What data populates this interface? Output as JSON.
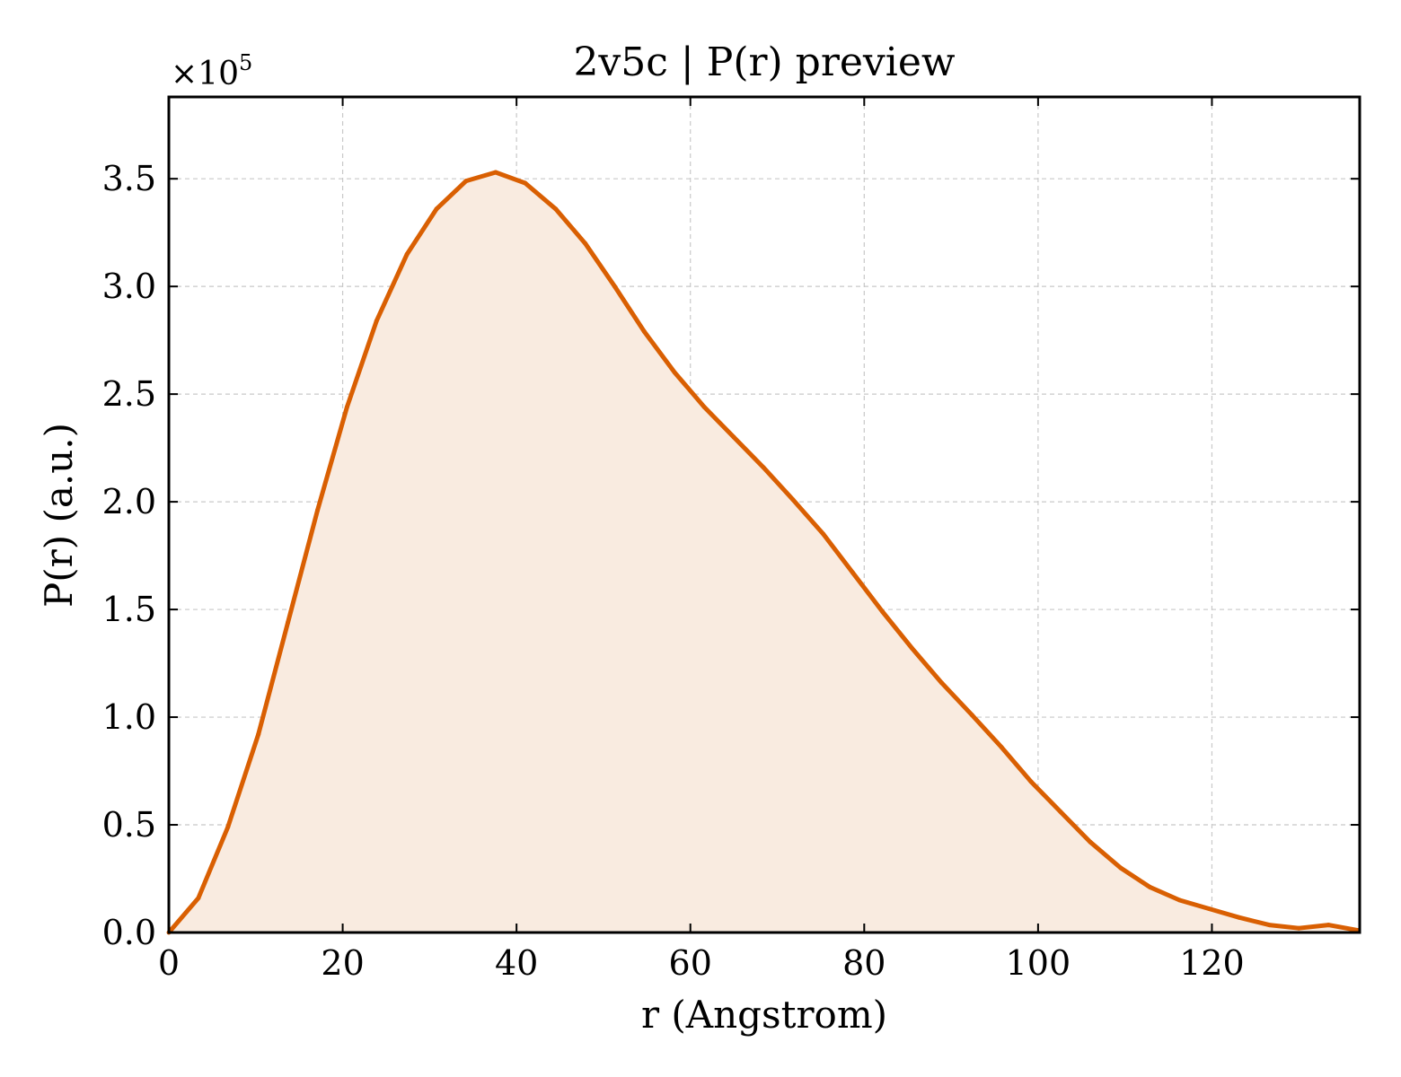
{
  "chart_data": {
    "type": "area",
    "title": "2v5c | P(r) preview",
    "xlabel": "r (Angstrom)",
    "ylabel": "P(r) (a.u.)",
    "y_offset_base": "×10",
    "y_offset_exponent": "5",
    "xlim": [
      0,
      137
    ],
    "ylim": [
      0,
      3.88
    ],
    "x_ticks": [
      0,
      20,
      40,
      60,
      80,
      100,
      120
    ],
    "x_tick_labels": [
      "0",
      "20",
      "40",
      "60",
      "80",
      "100",
      "120"
    ],
    "y_ticks": [
      0,
      0.5,
      1.0,
      1.5,
      2.0,
      2.5,
      3.0,
      3.5
    ],
    "y_tick_labels": [
      "0.0",
      "0.5",
      "1.0",
      "1.5",
      "2.0",
      "2.5",
      "3.0",
      "3.5"
    ],
    "grid": true,
    "line_color": "#d95f02",
    "fill_color": "#f9ebe0",
    "series": [
      {
        "x": [
          0,
          3.4,
          6.8,
          10.3,
          13.7,
          17.1,
          20.5,
          23.9,
          27.4,
          30.8,
          34.2,
          37.6,
          41.0,
          44.5,
          47.9,
          51.3,
          54.7,
          58.2,
          61.6,
          65.0,
          68.4,
          71.8,
          75.3,
          78.7,
          82.1,
          85.5,
          88.9,
          92.4,
          95.8,
          99.2,
          102.6,
          106.0,
          109.5,
          112.9,
          116.3,
          119.7,
          123.1,
          126.6,
          130.0,
          133.4,
          136.8
        ],
        "y": [
          0.0,
          0.16,
          0.49,
          0.92,
          1.44,
          1.96,
          2.44,
          2.84,
          3.15,
          3.36,
          3.49,
          3.53,
          3.48,
          3.36,
          3.2,
          3.0,
          2.79,
          2.6,
          2.44,
          2.3,
          2.16,
          2.01,
          1.85,
          1.67,
          1.49,
          1.32,
          1.16,
          1.01,
          0.86,
          0.7,
          0.56,
          0.42,
          0.3,
          0.21,
          0.15,
          0.11,
          0.07,
          0.035,
          0.02,
          0.035,
          0.01
        ]
      }
    ]
  }
}
